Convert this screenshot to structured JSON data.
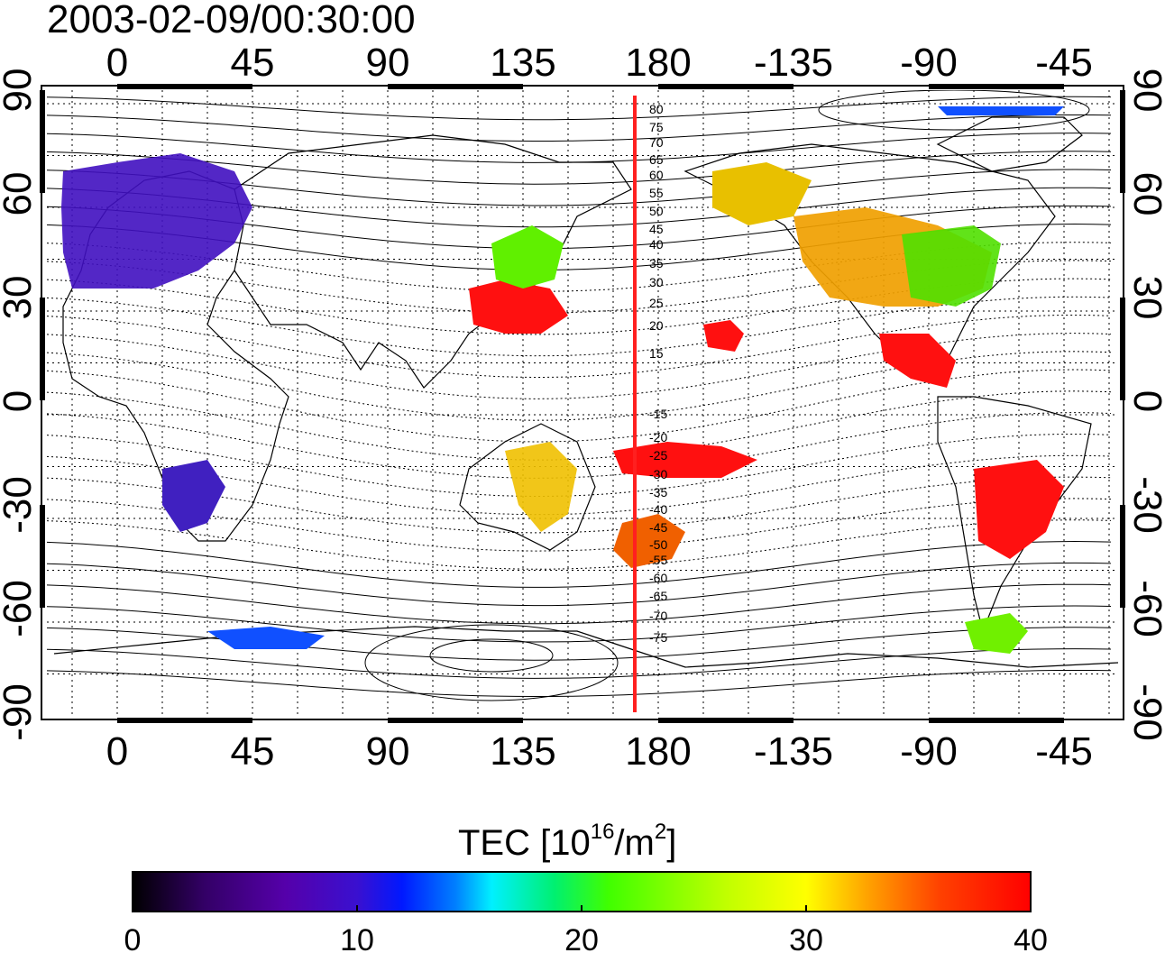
{
  "title": "2003-02-09/00:30:00",
  "map": {
    "top_axis_labels": [
      "0",
      "45",
      "90",
      "135",
      "180",
      "-135",
      "-90",
      "-45"
    ],
    "bottom_axis_labels": [
      "0",
      "45",
      "90",
      "135",
      "180",
      "-135",
      "-90",
      "-45"
    ],
    "lat_axis_labels": [
      "90",
      "60",
      "30",
      "0",
      "-30",
      "-60",
      "-90"
    ],
    "magnetic_meridian_labels_north": [
      "80",
      "75",
      "70",
      "65",
      "60",
      "55",
      "50",
      "45",
      "40",
      "35",
      "30",
      "25",
      "20",
      "15"
    ],
    "magnetic_meridian_labels_south": [
      "15",
      "20",
      "25",
      "30",
      "35",
      "40",
      "45",
      "50",
      "55",
      "60",
      "65",
      "70",
      "75"
    ],
    "meridian_line_color": "#ff2020",
    "background": "#ffffff"
  },
  "colorbar": {
    "label_main": "TEC  [10",
    "label_sup1": "16",
    "label_mid": "/m",
    "label_sup2": "2",
    "label_end": "]",
    "ticks": [
      "0",
      "10",
      "20",
      "30",
      "40"
    ],
    "range": [
      0,
      40
    ],
    "colormap": [
      "#000000",
      "#330066",
      "#5500aa",
      "#3a10d0",
      "#0018ff",
      "#0080ff",
      "#00f0ff",
      "#00f070",
      "#40ff00",
      "#c0ff00",
      "#ffff00",
      "#ffa000",
      "#ff4000",
      "#ff0000"
    ]
  }
}
